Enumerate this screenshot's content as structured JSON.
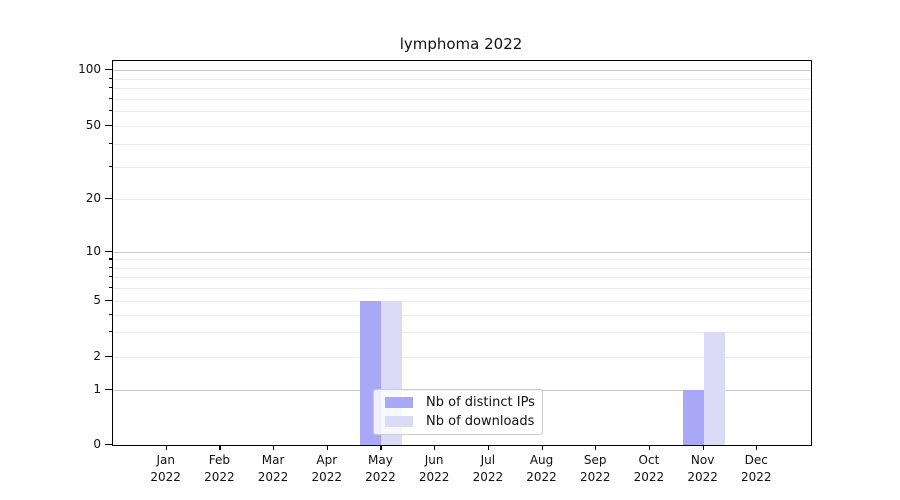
{
  "chart_data": {
    "type": "bar",
    "title": "lymphoma 2022",
    "year": "2022",
    "categories": [
      "Jan",
      "Feb",
      "Mar",
      "Apr",
      "May",
      "Jun",
      "Jul",
      "Aug",
      "Sep",
      "Oct",
      "Nov",
      "Dec"
    ],
    "series": [
      {
        "name": "Nb of distinct IPs",
        "color": "#a8a8f7",
        "values": [
          0,
          0,
          0,
          0,
          5,
          0,
          0,
          0,
          0,
          0,
          1,
          0
        ]
      },
      {
        "name": "Nb of downloads",
        "color": "#dbdbf8",
        "values": [
          0,
          0,
          0,
          0,
          5,
          0,
          0,
          0,
          0,
          0,
          3,
          0
        ]
      }
    ],
    "ylabel": "",
    "xlabel": "",
    "yscale": "asinh-log",
    "yticks": [
      0,
      1,
      2,
      5,
      10,
      20,
      50,
      100
    ],
    "yticks_minor": [
      3,
      4,
      6,
      7,
      8,
      9,
      30,
      40,
      60,
      70,
      80,
      90
    ],
    "ylim": [
      0,
      112
    ],
    "grid": true,
    "legend_position": "lower-center-inside"
  }
}
